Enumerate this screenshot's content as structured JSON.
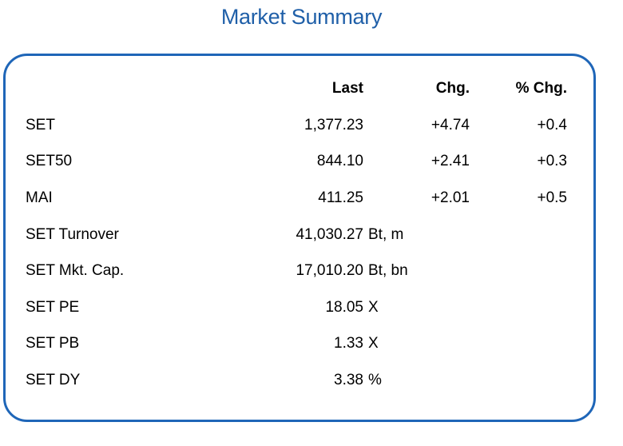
{
  "title": "Market Summary",
  "headers": {
    "last": "Last",
    "chg": "Chg.",
    "pct_chg": "% Chg."
  },
  "indices": [
    {
      "name": "SET",
      "last": "1,377.23",
      "chg": "+4.74",
      "pct_chg": "+0.4"
    },
    {
      "name": "SET50",
      "last": "844.10",
      "chg": "+2.41",
      "pct_chg": "+0.3"
    },
    {
      "name": "MAI",
      "last": "411.25",
      "chg": "+2.01",
      "pct_chg": "+0.5"
    }
  ],
  "stats": [
    {
      "name": "SET Turnover",
      "value": "41,030.27",
      "unit": "Bt, m"
    },
    {
      "name": "SET Mkt. Cap.",
      "value": "17,010.20",
      "unit": "Bt, bn"
    },
    {
      "name": "SET PE",
      "value": "18.05",
      "unit": "X"
    },
    {
      "name": "SET PB",
      "value": "1.33",
      "unit": "X"
    },
    {
      "name": "SET DY",
      "value": "3.38",
      "unit": "%"
    }
  ],
  "colors": {
    "title": "#1f5fa8",
    "border": "#1f66b8"
  }
}
